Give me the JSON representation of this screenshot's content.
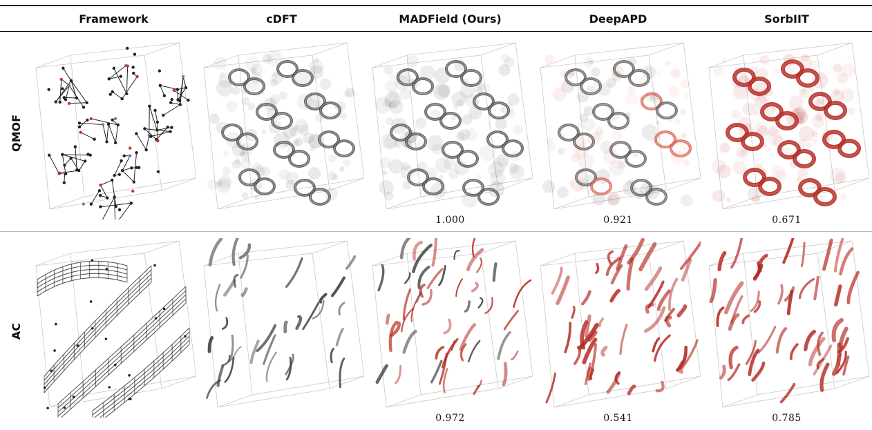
{
  "columns": [
    "Framework",
    "cDFT",
    "MADField (Ours)",
    "DeepAPD",
    "SorbIIT"
  ],
  "rows": [
    {
      "label": "QMOF",
      "scores": [
        "1.000",
        "0.921",
        "0.671"
      ]
    },
    {
      "label": "AC",
      "scores": [
        "0.972",
        "0.541",
        "0.785"
      ]
    }
  ],
  "colors": {
    "density_gray": "#3a3a3a",
    "density_red": "#b3261e",
    "atom": "#222222",
    "box": "#c8c8c8"
  },
  "panels": {
    "qmof": [
      "framework-structure",
      "density-gray",
      "density-gray",
      "density-gray-red",
      "density-red"
    ],
    "ac": [
      "framework-structure",
      "density-gray",
      "density-gray-red",
      "density-red",
      "density-red"
    ]
  }
}
